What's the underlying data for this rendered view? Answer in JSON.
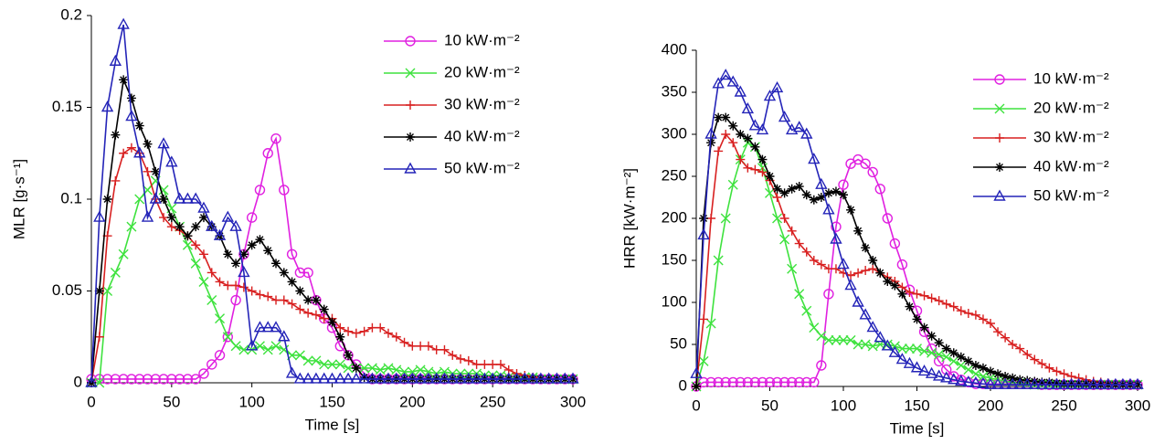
{
  "chart_data": [
    {
      "type": "line",
      "xlabel": "Time [s]",
      "ylabel": "MLR [g·s⁻¹]",
      "xlim": [
        0,
        300
      ],
      "xticks": [
        0,
        50,
        100,
        150,
        200,
        250,
        300
      ],
      "ylim": [
        0,
        0.2
      ],
      "yticks": [
        0,
        0.05,
        0.1,
        0.15,
        0.2
      ],
      "legend": "upper right",
      "x": [
        0,
        5,
        10,
        15,
        20,
        25,
        30,
        35,
        40,
        45,
        50,
        55,
        60,
        65,
        70,
        75,
        80,
        85,
        90,
        95,
        100,
        105,
        110,
        115,
        120,
        125,
        130,
        135,
        140,
        145,
        150,
        155,
        160,
        165,
        170,
        175,
        180,
        185,
        190,
        195,
        200,
        205,
        210,
        215,
        220,
        225,
        230,
        235,
        240,
        245,
        250,
        255,
        260,
        265,
        270,
        275,
        280,
        285,
        290,
        295,
        300
      ],
      "series": [
        {
          "name": "10 kW·m⁻²",
          "color": "#e020e0",
          "marker": "circle",
          "values": [
            0.002,
            0.002,
            0.002,
            0.002,
            0.002,
            0.002,
            0.002,
            0.002,
            0.002,
            0.002,
            0.002,
            0.002,
            0.002,
            0.002,
            0.005,
            0.01,
            0.015,
            0.025,
            0.045,
            0.07,
            0.09,
            0.105,
            0.125,
            0.133,
            0.105,
            0.07,
            0.06,
            0.06,
            0.045,
            0.035,
            0.03,
            0.02,
            0.015,
            0.01,
            0.005,
            0.002,
            0.002,
            0.002,
            0.002,
            0.002,
            0.002,
            0.002,
            0.002,
            0.002,
            0.002,
            0.002,
            0.002,
            0.002,
            0.002,
            0.002,
            0.002,
            0.002,
            0.002,
            0.002,
            0.002,
            0.002,
            0.002,
            0.002,
            0.002,
            0.002,
            0.002
          ]
        },
        {
          "name": "20 kW·m⁻²",
          "color": "#3ee23e",
          "marker": "x",
          "values": [
            0,
            0,
            0.05,
            0.06,
            0.07,
            0.085,
            0.1,
            0.105,
            0.11,
            0.105,
            0.095,
            0.085,
            0.075,
            0.065,
            0.055,
            0.045,
            0.035,
            0.025,
            0.02,
            0.018,
            0.018,
            0.02,
            0.018,
            0.02,
            0.018,
            0.015,
            0.015,
            0.012,
            0.012,
            0.01,
            0.01,
            0.01,
            0.008,
            0.008,
            0.008,
            0.008,
            0.007,
            0.008,
            0.007,
            0.006,
            0.006,
            0.007,
            0.006,
            0.005,
            0.006,
            0.005,
            0.005,
            0.005,
            0.005,
            0.004,
            0.004,
            0.004,
            0.003,
            0.003,
            0.003,
            0.003,
            0.002,
            0.002,
            0.002,
            0.002,
            0.002
          ]
        },
        {
          "name": "30 kW·m⁻²",
          "color": "#d82020",
          "marker": "plus",
          "values": [
            0,
            0.025,
            0.08,
            0.11,
            0.125,
            0.128,
            0.125,
            0.115,
            0.1,
            0.09,
            0.085,
            0.083,
            0.08,
            0.075,
            0.07,
            0.06,
            0.055,
            0.053,
            0.053,
            0.052,
            0.05,
            0.048,
            0.047,
            0.045,
            0.045,
            0.043,
            0.04,
            0.038,
            0.037,
            0.035,
            0.035,
            0.03,
            0.028,
            0.027,
            0.028,
            0.03,
            0.03,
            0.027,
            0.025,
            0.022,
            0.02,
            0.02,
            0.02,
            0.018,
            0.018,
            0.015,
            0.013,
            0.012,
            0.01,
            0.01,
            0.01,
            0.01,
            0.007,
            0.005,
            0.004,
            0.003,
            0.002,
            0.002,
            0.002,
            0.002,
            0.002
          ]
        },
        {
          "name": "40 kW·m⁻²",
          "color": "#000000",
          "marker": "star",
          "values": [
            0,
            0.05,
            0.1,
            0.135,
            0.165,
            0.155,
            0.14,
            0.13,
            0.115,
            0.1,
            0.09,
            0.085,
            0.08,
            0.085,
            0.09,
            0.085,
            0.08,
            0.07,
            0.065,
            0.07,
            0.075,
            0.078,
            0.072,
            0.065,
            0.06,
            0.055,
            0.05,
            0.045,
            0.045,
            0.04,
            0.033,
            0.025,
            0.015,
            0.008,
            0.003,
            0.002,
            0.002,
            0.002,
            0.002,
            0.002,
            0.002,
            0.002,
            0.002,
            0.002,
            0.002,
            0.002,
            0.002,
            0.002,
            0.002,
            0.002,
            0.002,
            0.002,
            0.002,
            0.002,
            0.002,
            0.002,
            0.002,
            0.002,
            0.002,
            0.002,
            0.002
          ]
        },
        {
          "name": "50 kW·m⁻²",
          "color": "#2424b8",
          "marker": "triangle",
          "values": [
            0,
            0.09,
            0.15,
            0.175,
            0.195,
            0.145,
            0.125,
            0.09,
            0.1,
            0.13,
            0.12,
            0.1,
            0.1,
            0.1,
            0.095,
            0.085,
            0.08,
            0.09,
            0.085,
            0.06,
            0.02,
            0.03,
            0.03,
            0.03,
            0.025,
            0.005,
            0.002,
            0.002,
            0.002,
            0.002,
            0.002,
            0.002,
            0.002,
            0.002,
            0.002,
            0.002,
            0.002,
            0.002,
            0.002,
            0.002,
            0.002,
            0.002,
            0.002,
            0.002,
            0.002,
            0.002,
            0.002,
            0.002,
            0.002,
            0.002,
            0.002,
            0.002,
            0.002,
            0.002,
            0.002,
            0.002,
            0.002,
            0.002,
            0.002,
            0.002,
            0.002
          ]
        }
      ]
    },
    {
      "type": "line",
      "xlabel": "Time [s]",
      "ylabel": "HRR [kW·m⁻²]",
      "xlim": [
        0,
        300
      ],
      "xticks": [
        0,
        50,
        100,
        150,
        200,
        250,
        300
      ],
      "ylim": [
        0,
        400
      ],
      "yticks": [
        0,
        50,
        100,
        150,
        200,
        250,
        300,
        350,
        400
      ],
      "legend": "upper right",
      "x": [
        0,
        5,
        10,
        15,
        20,
        25,
        30,
        35,
        40,
        45,
        50,
        55,
        60,
        65,
        70,
        75,
        80,
        85,
        90,
        95,
        100,
        105,
        110,
        115,
        120,
        125,
        130,
        135,
        140,
        145,
        150,
        155,
        160,
        165,
        170,
        175,
        180,
        185,
        190,
        195,
        200,
        205,
        210,
        215,
        220,
        225,
        230,
        235,
        240,
        245,
        250,
        255,
        260,
        265,
        270,
        275,
        280,
        285,
        290,
        295,
        300
      ],
      "series": [
        {
          "name": "10 kW·m⁻²",
          "color": "#e020e0",
          "marker": "circle",
          "values": [
            0,
            5,
            5,
            5,
            5,
            5,
            5,
            5,
            5,
            5,
            5,
            5,
            5,
            5,
            5,
            5,
            5,
            25,
            110,
            190,
            240,
            265,
            270,
            265,
            255,
            235,
            200,
            170,
            145,
            115,
            90,
            65,
            45,
            30,
            20,
            12,
            8,
            5,
            3,
            3,
            3,
            3,
            3,
            3,
            3,
            3,
            3,
            2,
            2,
            2,
            2,
            2,
            2,
            2,
            2,
            2,
            2,
            2,
            2,
            2,
            2
          ]
        },
        {
          "name": "20 kW·m⁻²",
          "color": "#3ee23e",
          "marker": "x",
          "values": [
            0,
            30,
            75,
            150,
            200,
            240,
            270,
            290,
            285,
            260,
            230,
            200,
            175,
            140,
            110,
            90,
            70,
            60,
            55,
            55,
            55,
            55,
            50,
            50,
            48,
            50,
            50,
            48,
            45,
            45,
            45,
            42,
            40,
            38,
            35,
            30,
            25,
            20,
            15,
            12,
            10,
            8,
            6,
            5,
            4,
            3,
            2,
            2,
            2,
            2,
            2,
            2,
            2,
            2,
            2,
            2,
            2,
            2,
            2,
            2,
            2
          ]
        },
        {
          "name": "30 kW·m⁻²",
          "color": "#d82020",
          "marker": "plus",
          "values": [
            0,
            80,
            200,
            280,
            300,
            290,
            270,
            260,
            258,
            255,
            245,
            225,
            200,
            185,
            170,
            160,
            150,
            145,
            140,
            140,
            135,
            132,
            135,
            138,
            140,
            135,
            130,
            125,
            118,
            112,
            110,
            108,
            105,
            102,
            98,
            95,
            90,
            87,
            85,
            80,
            75,
            65,
            58,
            50,
            45,
            38,
            32,
            27,
            22,
            18,
            15,
            12,
            10,
            8,
            6,
            5,
            4,
            3,
            2,
            2,
            2
          ]
        },
        {
          "name": "40 kW·m⁻²",
          "color": "#000000",
          "marker": "star",
          "values": [
            0,
            200,
            290,
            320,
            320,
            310,
            300,
            295,
            285,
            270,
            250,
            235,
            230,
            235,
            238,
            228,
            222,
            225,
            230,
            232,
            228,
            210,
            185,
            165,
            150,
            135,
            125,
            120,
            110,
            95,
            80,
            70,
            60,
            52,
            45,
            40,
            35,
            30,
            25,
            22,
            18,
            15,
            12,
            10,
            8,
            7,
            6,
            5,
            5,
            4,
            3,
            3,
            3,
            3,
            2,
            2,
            2,
            2,
            2,
            2,
            2
          ]
        },
        {
          "name": "50 kW·m⁻²",
          "color": "#2424b8",
          "marker": "triangle",
          "values": [
            15,
            180,
            300,
            360,
            370,
            362,
            350,
            330,
            310,
            305,
            345,
            355,
            320,
            305,
            308,
            300,
            270,
            240,
            210,
            175,
            145,
            120,
            100,
            85,
            70,
            58,
            48,
            40,
            32,
            27,
            22,
            18,
            15,
            12,
            10,
            8,
            6,
            5,
            4,
            3,
            2,
            2,
            2,
            2,
            2,
            2,
            2,
            2,
            2,
            2,
            2,
            2,
            2,
            2,
            2,
            2,
            2,
            2,
            2,
            2,
            2
          ]
        }
      ]
    }
  ]
}
